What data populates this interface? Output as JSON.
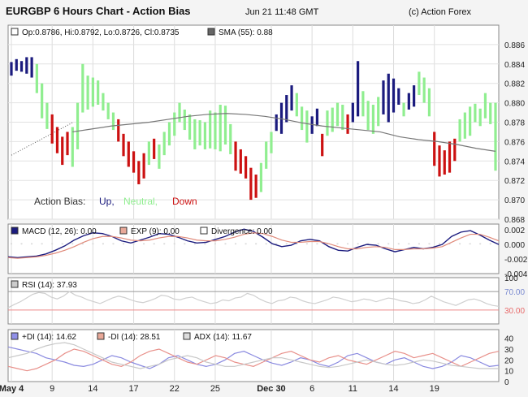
{
  "header": {
    "title": "EURGBP 6 Hours Chart - Action Bias",
    "datetime": "Jun 21 11:48 GMT",
    "credit": "(c) Action Forex"
  },
  "colors": {
    "up": "#1b1b7e",
    "neutral": "#90ee90",
    "down": "#cc1111",
    "sma": "#777777",
    "trend": "#555555"
  },
  "chart_data": [
    {
      "type": "bar",
      "panel": "price",
      "legend_ohlc": "Op:0.8786, Hi:0.8792, Lo:0.8726, Cl:0.8735",
      "legend_sma": "SMA (55): 0.88",
      "ylim": [
        0.868,
        0.888
      ],
      "yticks": [
        "0.886",
        "0.884",
        "0.882",
        "0.880",
        "0.878",
        "0.876",
        "0.874",
        "0.872",
        "0.870",
        "0.868"
      ],
      "ytick_values": [
        0.886,
        0.884,
        0.882,
        0.88,
        0.878,
        0.876,
        0.874,
        0.872,
        0.87,
        0.868
      ],
      "xticks": [
        "May 4",
        "9",
        "14",
        "17",
        "22",
        "25",
        "Dec 30",
        "6",
        "11",
        "14",
        "19"
      ],
      "xtick_index": [
        0,
        8,
        16,
        24,
        32,
        40,
        51,
        59,
        67,
        75,
        83
      ],
      "bias_label": "Action Bias:",
      "bias_up": "Up,",
      "bias_neutral": "Neutral,",
      "bias_down": "Down",
      "bars": [
        [
          "U",
          0.8828,
          0.8842
        ],
        [
          "U",
          0.8833,
          0.8845
        ],
        [
          "U",
          0.8832,
          0.8843
        ],
        [
          "U",
          0.883,
          0.8847
        ],
        [
          "U",
          0.8826,
          0.8847
        ],
        [
          "N",
          0.881,
          0.884
        ],
        [
          "N",
          0.8784,
          0.882
        ],
        [
          "N",
          0.8773,
          0.88
        ],
        [
          "D",
          0.8758,
          0.8788
        ],
        [
          "D",
          0.8748,
          0.8775
        ],
        [
          "D",
          0.8736,
          0.8765
        ],
        [
          "D",
          0.8746,
          0.877
        ],
        [
          "N",
          0.8734,
          0.8775
        ],
        [
          "N",
          0.8752,
          0.88
        ],
        [
          "N",
          0.879,
          0.884
        ],
        [
          "N",
          0.8793,
          0.8828
        ],
        [
          "N",
          0.8796,
          0.8826
        ],
        [
          "N",
          0.8798,
          0.8823
        ],
        [
          "N",
          0.8792,
          0.881
        ],
        [
          "N",
          0.8783,
          0.88
        ],
        [
          "N",
          0.8772,
          0.879
        ],
        [
          "D",
          0.876,
          0.8783
        ],
        [
          "D",
          0.8745,
          0.8768
        ],
        [
          "D",
          0.8734,
          0.876
        ],
        [
          "D",
          0.8728,
          0.875
        ],
        [
          "D",
          0.8716,
          0.874
        ],
        [
          "D",
          0.8722,
          0.8748
        ],
        [
          "N",
          0.8736,
          0.876
        ],
        [
          "D",
          0.8742,
          0.8763
        ],
        [
          "N",
          0.8732,
          0.8757
        ],
        [
          "N",
          0.8746,
          0.877
        ],
        [
          "N",
          0.8756,
          0.878
        ],
        [
          "N",
          0.8766,
          0.879
        ],
        [
          "N",
          0.878,
          0.88
        ],
        [
          "N",
          0.8772,
          0.8793
        ],
        [
          "N",
          0.8762,
          0.8788
        ],
        [
          "N",
          0.8752,
          0.8783
        ],
        [
          "N",
          0.8756,
          0.8782
        ],
        [
          "N",
          0.8752,
          0.878
        ],
        [
          "N",
          0.8753,
          0.8792
        ],
        [
          "N",
          0.8752,
          0.879
        ],
        [
          "N",
          0.875,
          0.8798
        ],
        [
          "N",
          0.8757,
          0.8797
        ],
        [
          "N",
          0.8747,
          0.8778
        ],
        [
          "D",
          0.873,
          0.876
        ],
        [
          "D",
          0.8727,
          0.8752
        ],
        [
          "D",
          0.8722,
          0.8745
        ],
        [
          "D",
          0.87,
          0.8733
        ],
        [
          "D",
          0.8702,
          0.8726
        ],
        [
          "N",
          0.8708,
          0.8738
        ],
        [
          "N",
          0.8732,
          0.876
        ],
        [
          "N",
          0.8748,
          0.877
        ],
        [
          "U",
          0.8771,
          0.8788
        ],
        [
          "U",
          0.8768,
          0.88
        ],
        [
          "U",
          0.878,
          0.8808
        ],
        [
          "U",
          0.8792,
          0.8818
        ],
        [
          "N",
          0.8786,
          0.881
        ],
        [
          "N",
          0.8772,
          0.8796
        ],
        [
          "N",
          0.8759,
          0.8792
        ],
        [
          "U",
          0.8768,
          0.8786
        ],
        [
          "U",
          0.8776,
          0.8794
        ],
        [
          "D",
          0.8745,
          0.8768
        ],
        [
          "N",
          0.8766,
          0.8792
        ],
        [
          "N",
          0.877,
          0.8795
        ],
        [
          "N",
          0.8776,
          0.88
        ],
        [
          "N",
          0.8772,
          0.8798
        ],
        [
          "D",
          0.8768,
          0.8788
        ],
        [
          "U",
          0.878,
          0.88
        ],
        [
          "U",
          0.8786,
          0.8843
        ],
        [
          "N",
          0.8786,
          0.8812
        ],
        [
          "N",
          0.8772,
          0.8802
        ],
        [
          "N",
          0.8768,
          0.8798
        ],
        [
          "N",
          0.8776,
          0.8806
        ],
        [
          "U",
          0.8788,
          0.8823
        ],
        [
          "U",
          0.878,
          0.883
        ],
        [
          "U",
          0.879,
          0.8825
        ],
        [
          "U",
          0.8798,
          0.8815
        ],
        [
          "N",
          0.8786,
          0.88
        ],
        [
          "U",
          0.8793,
          0.881
        ],
        [
          "U",
          0.8796,
          0.8818
        ],
        [
          "N",
          0.8808,
          0.8832
        ],
        [
          "N",
          0.88,
          0.8826
        ],
        [
          "N",
          0.8786,
          0.8815
        ],
        [
          "D",
          0.8735,
          0.877
        ],
        [
          "D",
          0.8724,
          0.8756
        ],
        [
          "D",
          0.8726,
          0.8751
        ],
        [
          "D",
          0.8728,
          0.876
        ],
        [
          "D",
          0.874,
          0.8763
        ],
        [
          "N",
          0.876,
          0.8783
        ],
        [
          "N",
          0.8763,
          0.879
        ],
        [
          "N",
          0.8766,
          0.8796
        ],
        [
          "N",
          0.878,
          0.8799
        ],
        [
          "N",
          0.8776,
          0.8794
        ],
        [
          "N",
          0.8784,
          0.881
        ],
        [
          "N",
          0.8778,
          0.88
        ],
        [
          "N",
          0.873,
          0.88
        ]
      ],
      "sma": [
        0.877,
        0.8773,
        0.8776,
        0.8778,
        0.878,
        0.8783,
        0.8786,
        0.8788,
        0.8789,
        0.8788,
        0.8786,
        0.8783,
        0.8779,
        0.8776,
        0.8774,
        0.8772,
        0.877,
        0.8765,
        0.8762,
        0.876,
        0.8757,
        0.8753,
        0.875
      ],
      "sma_from": 12
    },
    {
      "type": "line",
      "panel": "macd",
      "legend_macd": "MACD (12, 26): 0.00",
      "legend_exp": "EXP (9): 0.00",
      "legend_div": "Divergence: 0.00",
      "ylim": [
        -0.004,
        0.0028
      ],
      "yticks": [
        "0.002",
        "0.000",
        "-0.002",
        "-0.004"
      ],
      "ytick_values": [
        0.002,
        0.0,
        -0.002,
        -0.004
      ],
      "series": [
        {
          "name": "MACD",
          "values": [
            -0.0017,
            -0.0018,
            -0.0017,
            -0.0016,
            -0.0013,
            -0.0008,
            -0.0002,
            0.0006,
            0.0012,
            0.0016,
            0.0015,
            0.0011,
            0.0005,
            0.0002,
            0.0006,
            0.001,
            0.0015,
            0.0014,
            0.001,
            0.0005,
            0.0002,
            0.0003,
            0.0007,
            0.0011,
            0.0017,
            0.0021,
            0.0018,
            0.001,
            0.0001,
            -0.0003,
            -0.0001,
            0.0005,
            0.0007,
            0.0005,
            -0.0003,
            -0.0008,
            -0.0009,
            -0.0004,
            0.0,
            -0.0001,
            -0.0006,
            -0.001,
            -0.0007,
            -0.0004,
            -0.0006,
            -0.0004,
            0.0,
            0.0011,
            0.0017,
            0.0019,
            0.0013,
            0.0006,
            0.0
          ]
        },
        {
          "name": "EXP",
          "values": [
            -0.0018,
            -0.0019,
            -0.0018,
            -0.0017,
            -0.0015,
            -0.0012,
            -0.0008,
            -0.0003,
            0.0003,
            0.0008,
            0.0011,
            0.0011,
            0.0009,
            0.0006,
            0.0005,
            0.0006,
            0.0009,
            0.0011,
            0.0011,
            0.0009,
            0.0006,
            0.0005,
            0.0005,
            0.0007,
            0.001,
            0.0014,
            0.0016,
            0.0015,
            0.0011,
            0.0006,
            0.0003,
            0.0003,
            0.0004,
            0.0004,
            0.0001,
            -0.0003,
            -0.0006,
            -0.0006,
            -0.0004,
            -0.0003,
            -0.0004,
            -0.0007,
            -0.0007,
            -0.0006,
            -0.0006,
            -0.0005,
            -0.0003,
            0.0003,
            0.0009,
            0.0014,
            0.0014,
            0.001,
            0.0005
          ]
        }
      ]
    },
    {
      "type": "line",
      "panel": "rsi",
      "legend_rsi": "RSI (14): 37.93",
      "ylim": [
        0,
        100
      ],
      "yticks": [
        "100",
        "70.00",
        "30.00"
      ],
      "ytick_values": [
        100,
        70,
        30
      ],
      "values": [
        35,
        42,
        48,
        56,
        64,
        68,
        66,
        58,
        54,
        60,
        70,
        62,
        58,
        52,
        48,
        44,
        50,
        56,
        60,
        57,
        52,
        48,
        46,
        50,
        55,
        62,
        60,
        54,
        52,
        56,
        58,
        52,
        48,
        44,
        46,
        52,
        50,
        56,
        58,
        66,
        62,
        54,
        48,
        44,
        50,
        52,
        58,
        56,
        50,
        46,
        44,
        48,
        52,
        58,
        56,
        52,
        48,
        50,
        54,
        52,
        48,
        52,
        56,
        54,
        50,
        48,
        44,
        46,
        52,
        60,
        54,
        48,
        44,
        40,
        46,
        52,
        54,
        50,
        44,
        40,
        38
      ]
    },
    {
      "type": "line",
      "panel": "adx",
      "legend_pdi": "+DI (14): 14.62",
      "legend_mdi": "-DI (14): 28.51",
      "legend_adx": "ADX (14): 11.67",
      "ylim": [
        0,
        48
      ],
      "yticks": [
        "40",
        "30",
        "20",
        "10",
        "0"
      ],
      "ytick_values": [
        40,
        30,
        20,
        10,
        0
      ],
      "series": [
        {
          "name": "+DI",
          "values": [
            32,
            30,
            28,
            26,
            22,
            20,
            18,
            15,
            14,
            16,
            20,
            24,
            22,
            18,
            15,
            12,
            16,
            22,
            24,
            20,
            16,
            14,
            16,
            20,
            26,
            28,
            24,
            20,
            17,
            15,
            18,
            22,
            20,
            16,
            14,
            18,
            24,
            26,
            22,
            18,
            16,
            20,
            22,
            18,
            14,
            12,
            14,
            18,
            24,
            22,
            18,
            14,
            15
          ]
        },
        {
          "name": "-DI",
          "values": [
            14,
            12,
            10,
            12,
            16,
            20,
            26,
            30,
            28,
            24,
            20,
            16,
            14,
            18,
            24,
            28,
            30,
            26,
            22,
            18,
            16,
            20,
            24,
            22,
            18,
            16,
            14,
            18,
            22,
            26,
            28,
            24,
            20,
            18,
            22,
            24,
            20,
            18,
            16,
            20,
            24,
            28,
            26,
            22,
            24,
            26,
            22,
            18,
            14,
            18,
            22,
            26,
            28
          ]
        },
        {
          "name": "ADX",
          "values": [
            22,
            24,
            26,
            30,
            33,
            35,
            36,
            34,
            30,
            26,
            22,
            18,
            16,
            14,
            12,
            14,
            16,
            20,
            22,
            24,
            22,
            18,
            16,
            14,
            14,
            16,
            18,
            20,
            22,
            22,
            20,
            18,
            16,
            14,
            13,
            14,
            16,
            18,
            20,
            18,
            16,
            15,
            16,
            18,
            20,
            19,
            17,
            15,
            14,
            13,
            12,
            12,
            12
          ]
        }
      ]
    }
  ]
}
